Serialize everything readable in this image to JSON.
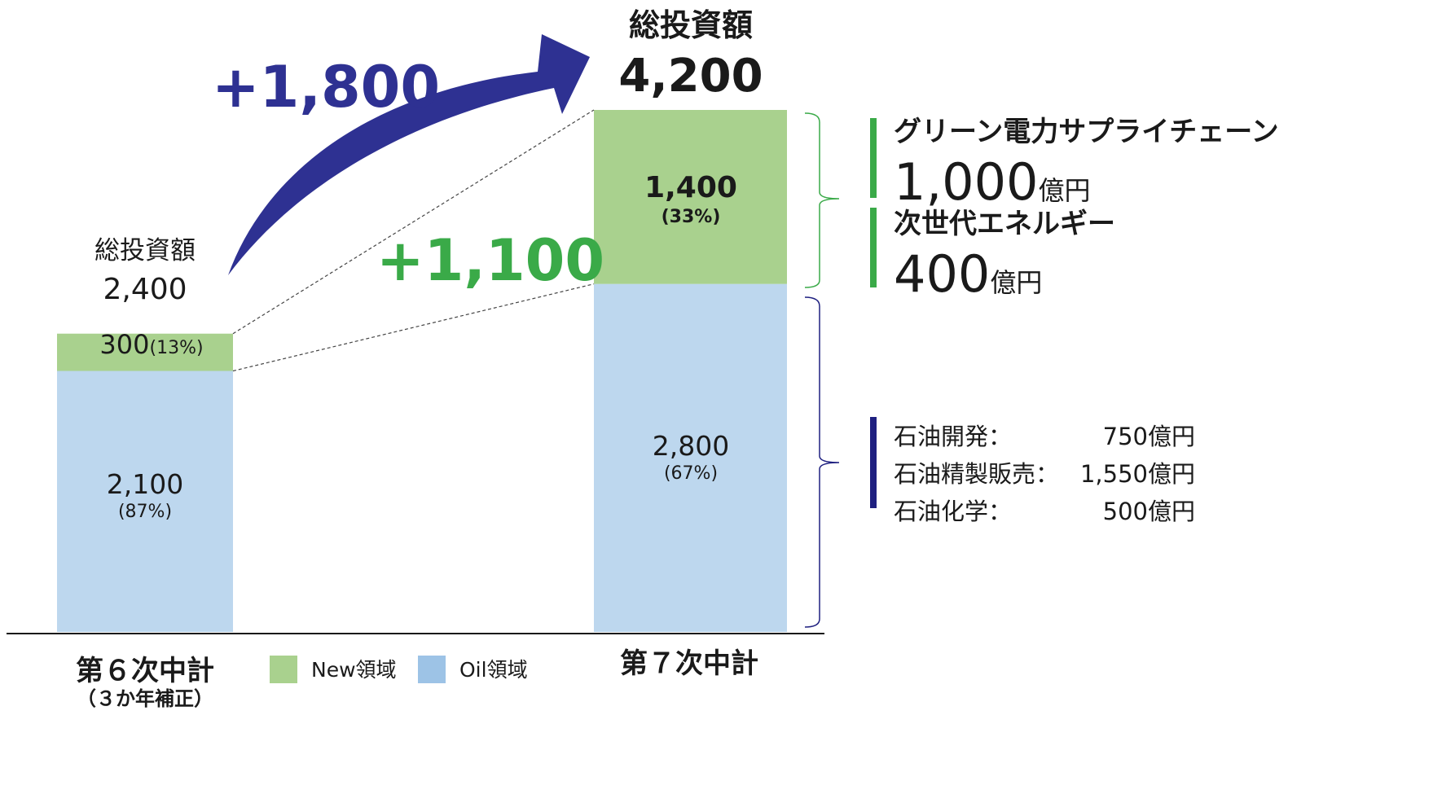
{
  "chart_data": {
    "type": "bar",
    "stacked": true,
    "categories": [
      "第６次中計",
      "第７次中計"
    ],
    "category_sublabels": [
      "（３か年補正）",
      ""
    ],
    "series": [
      {
        "name": "Oil領域",
        "values": [
          2100,
          2800
        ],
        "pct_labels": [
          "(87%)",
          "(67%)"
        ],
        "value_labels": [
          "2,100",
          "2,800"
        ]
      },
      {
        "name": "New領域",
        "values": [
          300,
          1400
        ],
        "pct_labels": [
          "(13%)",
          "(33%)"
        ],
        "value_labels": [
          "300",
          "1,400"
        ]
      }
    ],
    "totals": {
      "title": "総投資額",
      "values": [
        2400,
        4200
      ],
      "value_labels": [
        "2,400",
        "4,200"
      ]
    },
    "deltas": {
      "total": "+1,800",
      "new": "+1,100"
    },
    "ylim": [
      0,
      4200
    ],
    "grid": false,
    "legend_placement": "bottom-center",
    "colors": {
      "oil": "#bdd7ee",
      "new": "#a9d18e",
      "new_legend": "#a9d18e",
      "oil_legend": "#9dc3e6",
      "arrow": "#2e3192",
      "delta_new": "#3aaa48",
      "accent_green": "#3aaa48",
      "accent_navy": "#1f2080"
    }
  },
  "breakdown": {
    "new": [
      {
        "label": "グリーン電力サプライチェーン",
        "value": "1,000",
        "unit": "億円"
      },
      {
        "label": "次世代エネルギー",
        "value": "400",
        "unit": "億円"
      }
    ],
    "oil": [
      {
        "label": "石油開発：",
        "value": "750億円"
      },
      {
        "label": "石油精製販売：",
        "value": "1,550億円"
      },
      {
        "label": "石油化学：",
        "value": "500億円"
      }
    ]
  }
}
